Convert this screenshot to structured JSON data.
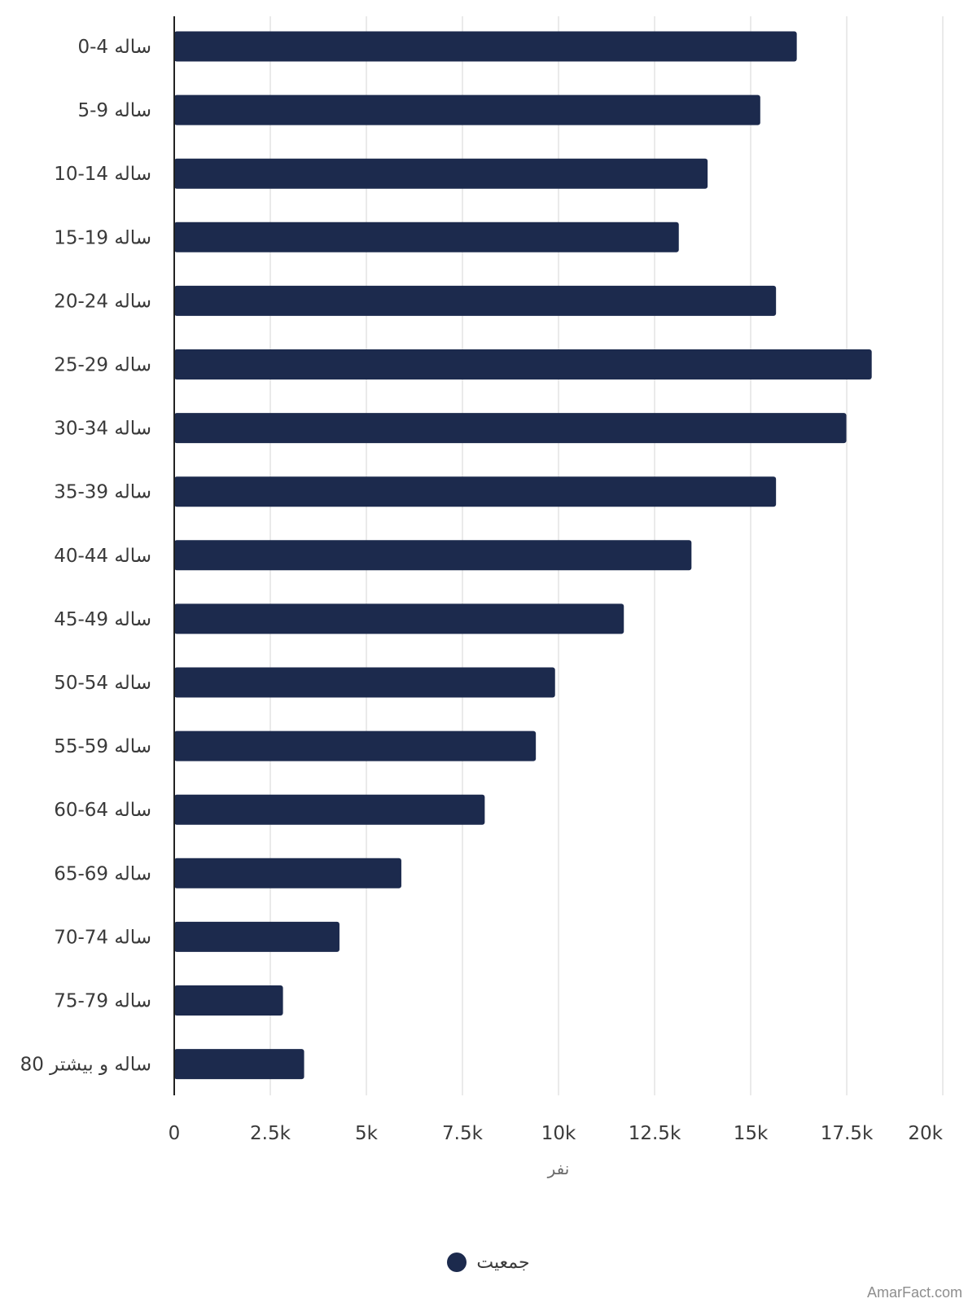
{
  "chart_data": {
    "type": "bar",
    "orientation": "horizontal",
    "categories": [
      "0-4 ساله",
      "5-9 ساله",
      "10-14 ساله",
      "15-19 ساله",
      "20-24 ساله",
      "25-29 ساله",
      "30-34 ساله",
      "35-39 ساله",
      "40-44 ساله",
      "45-49 ساله",
      "50-54 ساله",
      "55-59 ساله",
      "60-64 ساله",
      "65-69 ساله",
      "70-74 ساله",
      "75-79 ساله",
      "80 ساله و بیشتر"
    ],
    "values": [
      16200,
      15250,
      13880,
      13130,
      15660,
      18150,
      17490,
      15660,
      13460,
      11700,
      9910,
      9410,
      8080,
      5910,
      4300,
      2830,
      3380
    ],
    "xlim": [
      0,
      20000
    ],
    "xticks": [
      0,
      2500,
      5000,
      7500,
      10000,
      12500,
      15000,
      17500,
      20000
    ],
    "xtick_labels": [
      "0",
      "2.5k",
      "5k",
      "7.5k",
      "10k",
      "12.5k",
      "15k",
      "17.5k",
      "20k"
    ],
    "xlabel": "نفر",
    "ylabel": "",
    "grid": "vertical",
    "series": [
      {
        "name": "جمعیت",
        "color": "#1c2a4d"
      }
    ],
    "legend_position": "bottom-center"
  },
  "colors": {
    "bar": "#1c2a4d",
    "grid": "#e3e3e3",
    "axis": "#222222"
  },
  "legend": {
    "label": "جمعیت"
  },
  "watermark": "AmarFact.com"
}
